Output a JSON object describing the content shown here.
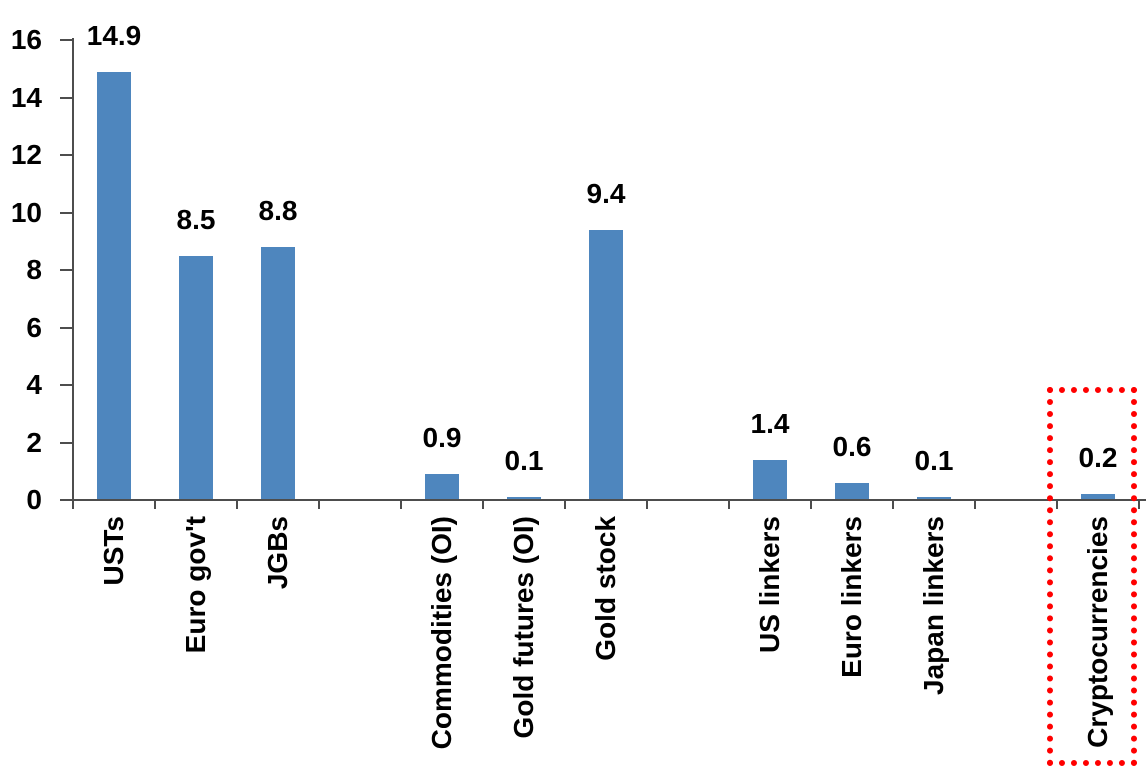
{
  "chart_data": {
    "type": "bar",
    "title": "",
    "xlabel": "",
    "ylabel": "",
    "ylim": [
      0,
      16
    ],
    "yticks": [
      0,
      2,
      4,
      6,
      8,
      10,
      12,
      14,
      16
    ],
    "grid": false,
    "legend_position": "none",
    "bar_color": "#4E86BE",
    "axis_color": "#4D4D4D",
    "label_color": "#000000",
    "highlight_color": "#FF0000",
    "categories": [
      "USTs",
      "Euro gov't",
      "JGBs",
      "",
      "Commodities (OI)",
      "Gold futures (OI)",
      "Gold stock",
      "",
      "US linkers",
      "Euro linkers",
      "Japan linkers",
      "",
      "Cryptocurrencies"
    ],
    "values": [
      14.9,
      8.5,
      8.8,
      null,
      0.9,
      0.1,
      9.4,
      null,
      1.4,
      0.6,
      0.1,
      null,
      0.2
    ],
    "value_labels": [
      "14.9",
      "8.5",
      "8.8",
      "",
      "0.9",
      "0.1",
      "9.4",
      "",
      "1.4",
      "0.6",
      "0.1",
      "",
      "0.2"
    ],
    "highlight": {
      "style": "dotted-box",
      "category": "Cryptocurrencies",
      "category_index": 12
    }
  }
}
